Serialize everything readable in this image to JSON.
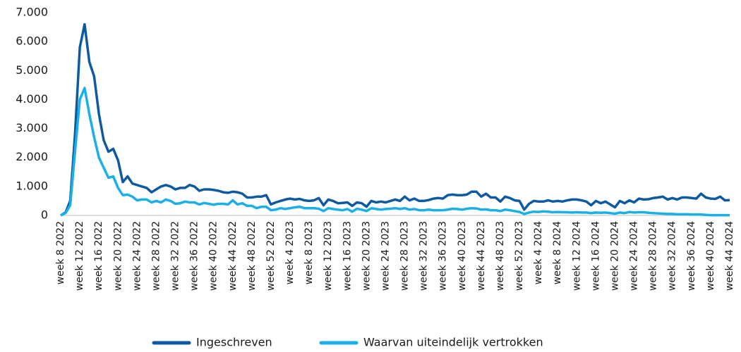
{
  "chart_data": {
    "type": "line",
    "categories": [
      "week 8 2022",
      null,
      null,
      null,
      "week 12 2022",
      null,
      null,
      null,
      "week 16 2022",
      null,
      null,
      null,
      "week 20 2022",
      null,
      null,
      null,
      "week 24 2022",
      null,
      null,
      null,
      "week 28 2022",
      null,
      null,
      null,
      "week 32 2022",
      null,
      null,
      null,
      "week 36 2022",
      null,
      null,
      null,
      "week 40 2022",
      null,
      null,
      null,
      "week 44 2022",
      null,
      null,
      null,
      "week 48 2022",
      null,
      null,
      null,
      "week 52 2022",
      null,
      null,
      null,
      "week 4 2023",
      null,
      null,
      null,
      "week 8 2023",
      null,
      null,
      null,
      "week 12 2023",
      null,
      null,
      null,
      "week 16 2023",
      null,
      null,
      null,
      "week 20 2023",
      null,
      null,
      null,
      "week 24 2023",
      null,
      null,
      null,
      "week 28 2023",
      null,
      null,
      null,
      "week 32 2023",
      null,
      null,
      null,
      "week 36 2023",
      null,
      null,
      null,
      "week 40 2023",
      null,
      null,
      null,
      "week 44 2023",
      null,
      null,
      null,
      "week 48 2023",
      null,
      null,
      null,
      "week 52 2023",
      null,
      null,
      null,
      "week 4 2024",
      null,
      null,
      null,
      "week 8 2024",
      null,
      null,
      null,
      "week 12 2024",
      null,
      null,
      null,
      "week 16 2024",
      null,
      null,
      null,
      "week 20 2024",
      null,
      null,
      null,
      "week 24 2024",
      null,
      null,
      null,
      "week 28 2024",
      null,
      null,
      null,
      "week 32 2024",
      null,
      null,
      null,
      "week 36 2024",
      null,
      null,
      null,
      "week 40 2024",
      null,
      null,
      null,
      "week 44 2024"
    ],
    "series": [
      {
        "name": "Ingeschreven",
        "color": "#0e5aa0",
        "values": [
          0,
          100,
          500,
          2800,
          5800,
          6600,
          5300,
          4800,
          3500,
          2600,
          2200,
          2300,
          1900,
          1150,
          1350,
          1100,
          1050,
          1000,
          950,
          800,
          900,
          1000,
          1050,
          1000,
          900,
          950,
          950,
          1050,
          1000,
          850,
          900,
          900,
          880,
          850,
          800,
          780,
          820,
          800,
          750,
          620,
          620,
          650,
          650,
          700,
          380,
          450,
          500,
          550,
          580,
          550,
          570,
          520,
          500,
          520,
          600,
          350,
          550,
          500,
          420,
          430,
          450,
          330,
          450,
          420,
          300,
          500,
          450,
          480,
          450,
          500,
          550,
          500,
          650,
          520,
          580,
          500,
          500,
          530,
          580,
          600,
          580,
          700,
          720,
          700,
          700,
          720,
          820,
          820,
          650,
          750,
          620,
          620,
          480,
          650,
          600,
          520,
          500,
          200,
          400,
          500,
          480,
          480,
          520,
          480,
          500,
          480,
          520,
          550,
          550,
          520,
          480,
          350,
          500,
          420,
          480,
          380,
          280,
          500,
          420,
          520,
          450,
          580,
          550,
          560,
          600,
          620,
          650,
          550,
          600,
          550,
          620,
          620,
          600,
          580,
          750,
          620,
          580,
          570,
          650,
          520,
          530
        ]
      },
      {
        "name": "Waarvan uiteindelijk vertrokken",
        "color": "#1aafe6",
        "values": [
          0,
          80,
          350,
          2200,
          4000,
          4400,
          3500,
          2700,
          2000,
          1650,
          1300,
          1350,
          950,
          700,
          720,
          650,
          520,
          550,
          550,
          450,
          500,
          450,
          550,
          500,
          400,
          420,
          480,
          450,
          450,
          380,
          430,
          400,
          370,
          400,
          400,
          380,
          520,
          380,
          420,
          330,
          330,
          250,
          300,
          300,
          180,
          200,
          250,
          220,
          250,
          280,
          300,
          250,
          250,
          250,
          230,
          150,
          250,
          220,
          200,
          180,
          220,
          130,
          230,
          200,
          150,
          250,
          220,
          200,
          220,
          230,
          250,
          220,
          250,
          200,
          220,
          180,
          180,
          200,
          180,
          180,
          180,
          200,
          230,
          220,
          200,
          230,
          250,
          240,
          200,
          210,
          180,
          180,
          150,
          200,
          180,
          150,
          120,
          50,
          100,
          130,
          120,
          140,
          130,
          110,
          120,
          110,
          110,
          100,
          110,
          100,
          100,
          80,
          100,
          90,
          100,
          80,
          60,
          100,
          80,
          120,
          100,
          110,
          110,
          90,
          80,
          70,
          60,
          50,
          50,
          40,
          40,
          40,
          30,
          30,
          30,
          20,
          10,
          10,
          10,
          10,
          10
        ]
      }
    ],
    "ylim": [
      0,
      7000
    ],
    "yticks": [
      0,
      {
        "value": 1000,
        "label": "1.000"
      },
      {
        "value": 2000,
        "label": "2.000"
      },
      {
        "value": 3000,
        "label": "3.000"
      },
      {
        "value": 4000,
        "label": "4.000"
      },
      {
        "value": 5000,
        "label": "5.000"
      },
      {
        "value": 6000,
        "label": "6.000"
      },
      {
        "value": 7000,
        "label": "7.000"
      }
    ],
    "grid": false,
    "legend": "bottom"
  }
}
